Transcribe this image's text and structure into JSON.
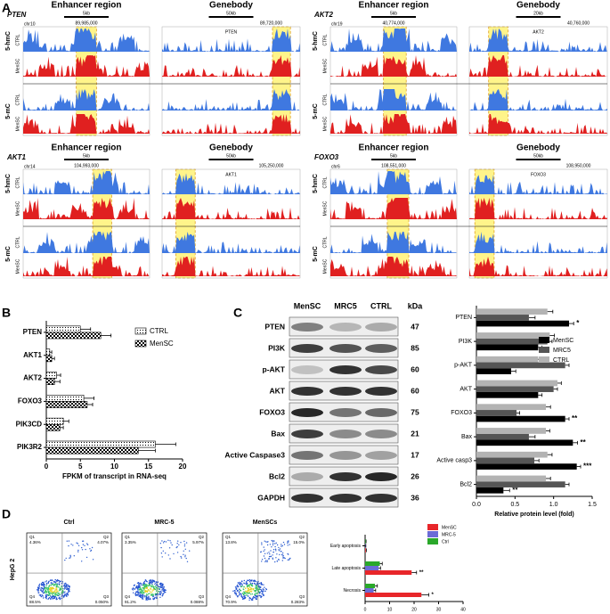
{
  "panel_labels": [
    "A",
    "B",
    "C",
    "D"
  ],
  "panel_a": {
    "headers": [
      "Enhancer region",
      "Genebody"
    ],
    "marks": [
      "5-hmC",
      "5-mC"
    ],
    "groups": [
      "CTRL",
      "MenSC"
    ],
    "blocks": [
      {
        "gene": "PTEN",
        "chr": "chr10",
        "scales": [
          "5kb",
          "50kb"
        ],
        "coords": [
          "89,985,000",
          "89,720,000"
        ]
      },
      {
        "gene": "AKT2",
        "chr": "chr19",
        "scales": [
          "5kb",
          "20kb"
        ],
        "coords": [
          "40,774,000",
          "40,760,000"
        ]
      },
      {
        "gene": "AKT1",
        "chr": "chr14",
        "scales": [
          "5kb",
          "50kb"
        ],
        "coords": [
          "104,993,000",
          "105,250,000"
        ]
      },
      {
        "gene": "FOXO3",
        "chr": "chr6",
        "scales": [
          "5kb",
          "50kb"
        ],
        "coords": [
          "108,551,000",
          "108,950,000"
        ]
      }
    ]
  },
  "western": {
    "columns": [
      "MenSC",
      "MRC5",
      "CTRL",
      "kDa"
    ],
    "rows": [
      {
        "protein": "PTEN",
        "kda": 47
      },
      {
        "protein": "PI3K",
        "kda": 85
      },
      {
        "protein": "p-AKT",
        "kda": 60
      },
      {
        "protein": "AKT",
        "kda": 60
      },
      {
        "protein": "FOXO3",
        "kda": 75
      },
      {
        "protein": "Bax",
        "kda": 21
      },
      {
        "protein": "Active Caspase3",
        "kda": 17
      },
      {
        "protein": "Bcl2",
        "kda": 26
      },
      {
        "protein": "GAPDH",
        "kda": 36
      }
    ]
  },
  "flow": {
    "ylabel": "HepG 2",
    "plots": [
      {
        "title": "Ctrl",
        "quadrants": [
          "Q1",
          "Q2",
          "Q4",
          "Q3"
        ],
        "percents": [
          "4.36%",
          "4.07%",
          "88.5%",
          "0.050%"
        ]
      },
      {
        "title": "MRC-5",
        "quadrants": [
          "Q1",
          "Q2",
          "Q4",
          "Q3"
        ],
        "percents": [
          "3.35%",
          "5.97%",
          "91.2%",
          "0.088%"
        ]
      },
      {
        "title": "MenSCs",
        "quadrants": [
          "Q1",
          "Q2",
          "Q4",
          "Q3"
        ],
        "percents": [
          "13.8%",
          "15.0%",
          "70.9%",
          "0.283%"
        ]
      }
    ]
  },
  "chart_data": [
    {
      "type": "bar",
      "orientation": "horizontal",
      "categories": [
        "PTEN",
        "AKT1",
        "AKT2",
        "FOXO3",
        "PIK3CD",
        "PIK3R2"
      ],
      "series": [
        {
          "name": "CTRL",
          "color": "#ffffff",
          "pattern": "dots",
          "values": [
            5,
            0.5,
            1.5,
            5.5,
            2.5,
            16
          ],
          "errors": [
            1.5,
            0.3,
            0.6,
            1.5,
            0.8,
            3
          ]
        },
        {
          "name": "MenSC",
          "color": "#ffffff",
          "pattern": "checker",
          "values": [
            8,
            0.8,
            1.2,
            6,
            2,
            13.5
          ],
          "errors": [
            1.5,
            0.4,
            0.8,
            0.8,
            0.5,
            2.5
          ]
        }
      ],
      "xlim": [
        0,
        20
      ],
      "xticks": [
        0,
        5,
        10,
        15,
        20
      ],
      "xlabel": "FPKM of transcript in RNA-seq",
      "legend": "upper right"
    },
    {
      "type": "bar",
      "orientation": "horizontal",
      "categories": [
        "PTEN",
        "PI3K",
        "p-AKT",
        "AKT",
        "FOXO3",
        "Bax",
        "Active casp3",
        "Bcl2"
      ],
      "series": [
        {
          "name": "MenSC",
          "color": "#000000",
          "values": [
            1.2,
            0.8,
            0.45,
            0.8,
            1.15,
            1.25,
            1.3,
            0.35
          ],
          "errors": [
            0.06,
            0.05,
            0.06,
            0.05,
            0.05,
            0.06,
            0.05,
            0.08
          ],
          "significance": [
            "*",
            null,
            null,
            null,
            "**",
            "**",
            "***",
            "**"
          ]
        },
        {
          "name": "MRC5",
          "color": "#555555",
          "values": [
            0.68,
            0.92,
            1.15,
            1.0,
            0.52,
            0.68,
            0.75,
            1.15
          ],
          "errors": [
            0.08,
            0.06,
            0.05,
            0.05,
            0.04,
            0.08,
            0.06,
            0.05
          ]
        },
        {
          "name": "CTRL",
          "color": "#b3b3b3",
          "values": [
            0.92,
            0.95,
            0.8,
            1.05,
            0.9,
            0.9,
            0.92,
            0.9
          ],
          "errors": [
            0.07,
            0.06,
            0.05,
            0.05,
            0.06,
            0.05,
            0.06,
            0.06
          ]
        }
      ],
      "xlim": [
        0,
        1.5
      ],
      "xticks": [
        {
          "value": 0,
          "label": "0.0"
        },
        0.5,
        {
          "value": 1,
          "label": "1.0"
        },
        1.5
      ],
      "xlabel": "Relative protein level (fold)",
      "legend": "upper right"
    },
    {
      "type": "bar",
      "orientation": "horizontal",
      "categories": [
        "Early apoptosis",
        "Late apoptosis",
        "Necrosis"
      ],
      "series": [
        {
          "name": "MenSC",
          "color": "#e8262a",
          "values": [
            0.3,
            19,
            23
          ],
          "errors": [
            0.2,
            2,
            3
          ],
          "significance": [
            null,
            "**",
            "*"
          ]
        },
        {
          "name": "MRC-5",
          "color": "#6b6bd6",
          "values": [
            0.2,
            5.5,
            3.5
          ],
          "errors": [
            0.1,
            0.8,
            0.8
          ]
        },
        {
          "name": "Ctrl",
          "color": "#2aa82a",
          "values": [
            0.3,
            6,
            4
          ],
          "errors": [
            0.1,
            1,
            1
          ]
        }
      ],
      "xlim": [
        0,
        40
      ],
      "xticks": [
        0,
        10,
        20,
        30,
        40
      ],
      "legend": "upper right"
    }
  ]
}
